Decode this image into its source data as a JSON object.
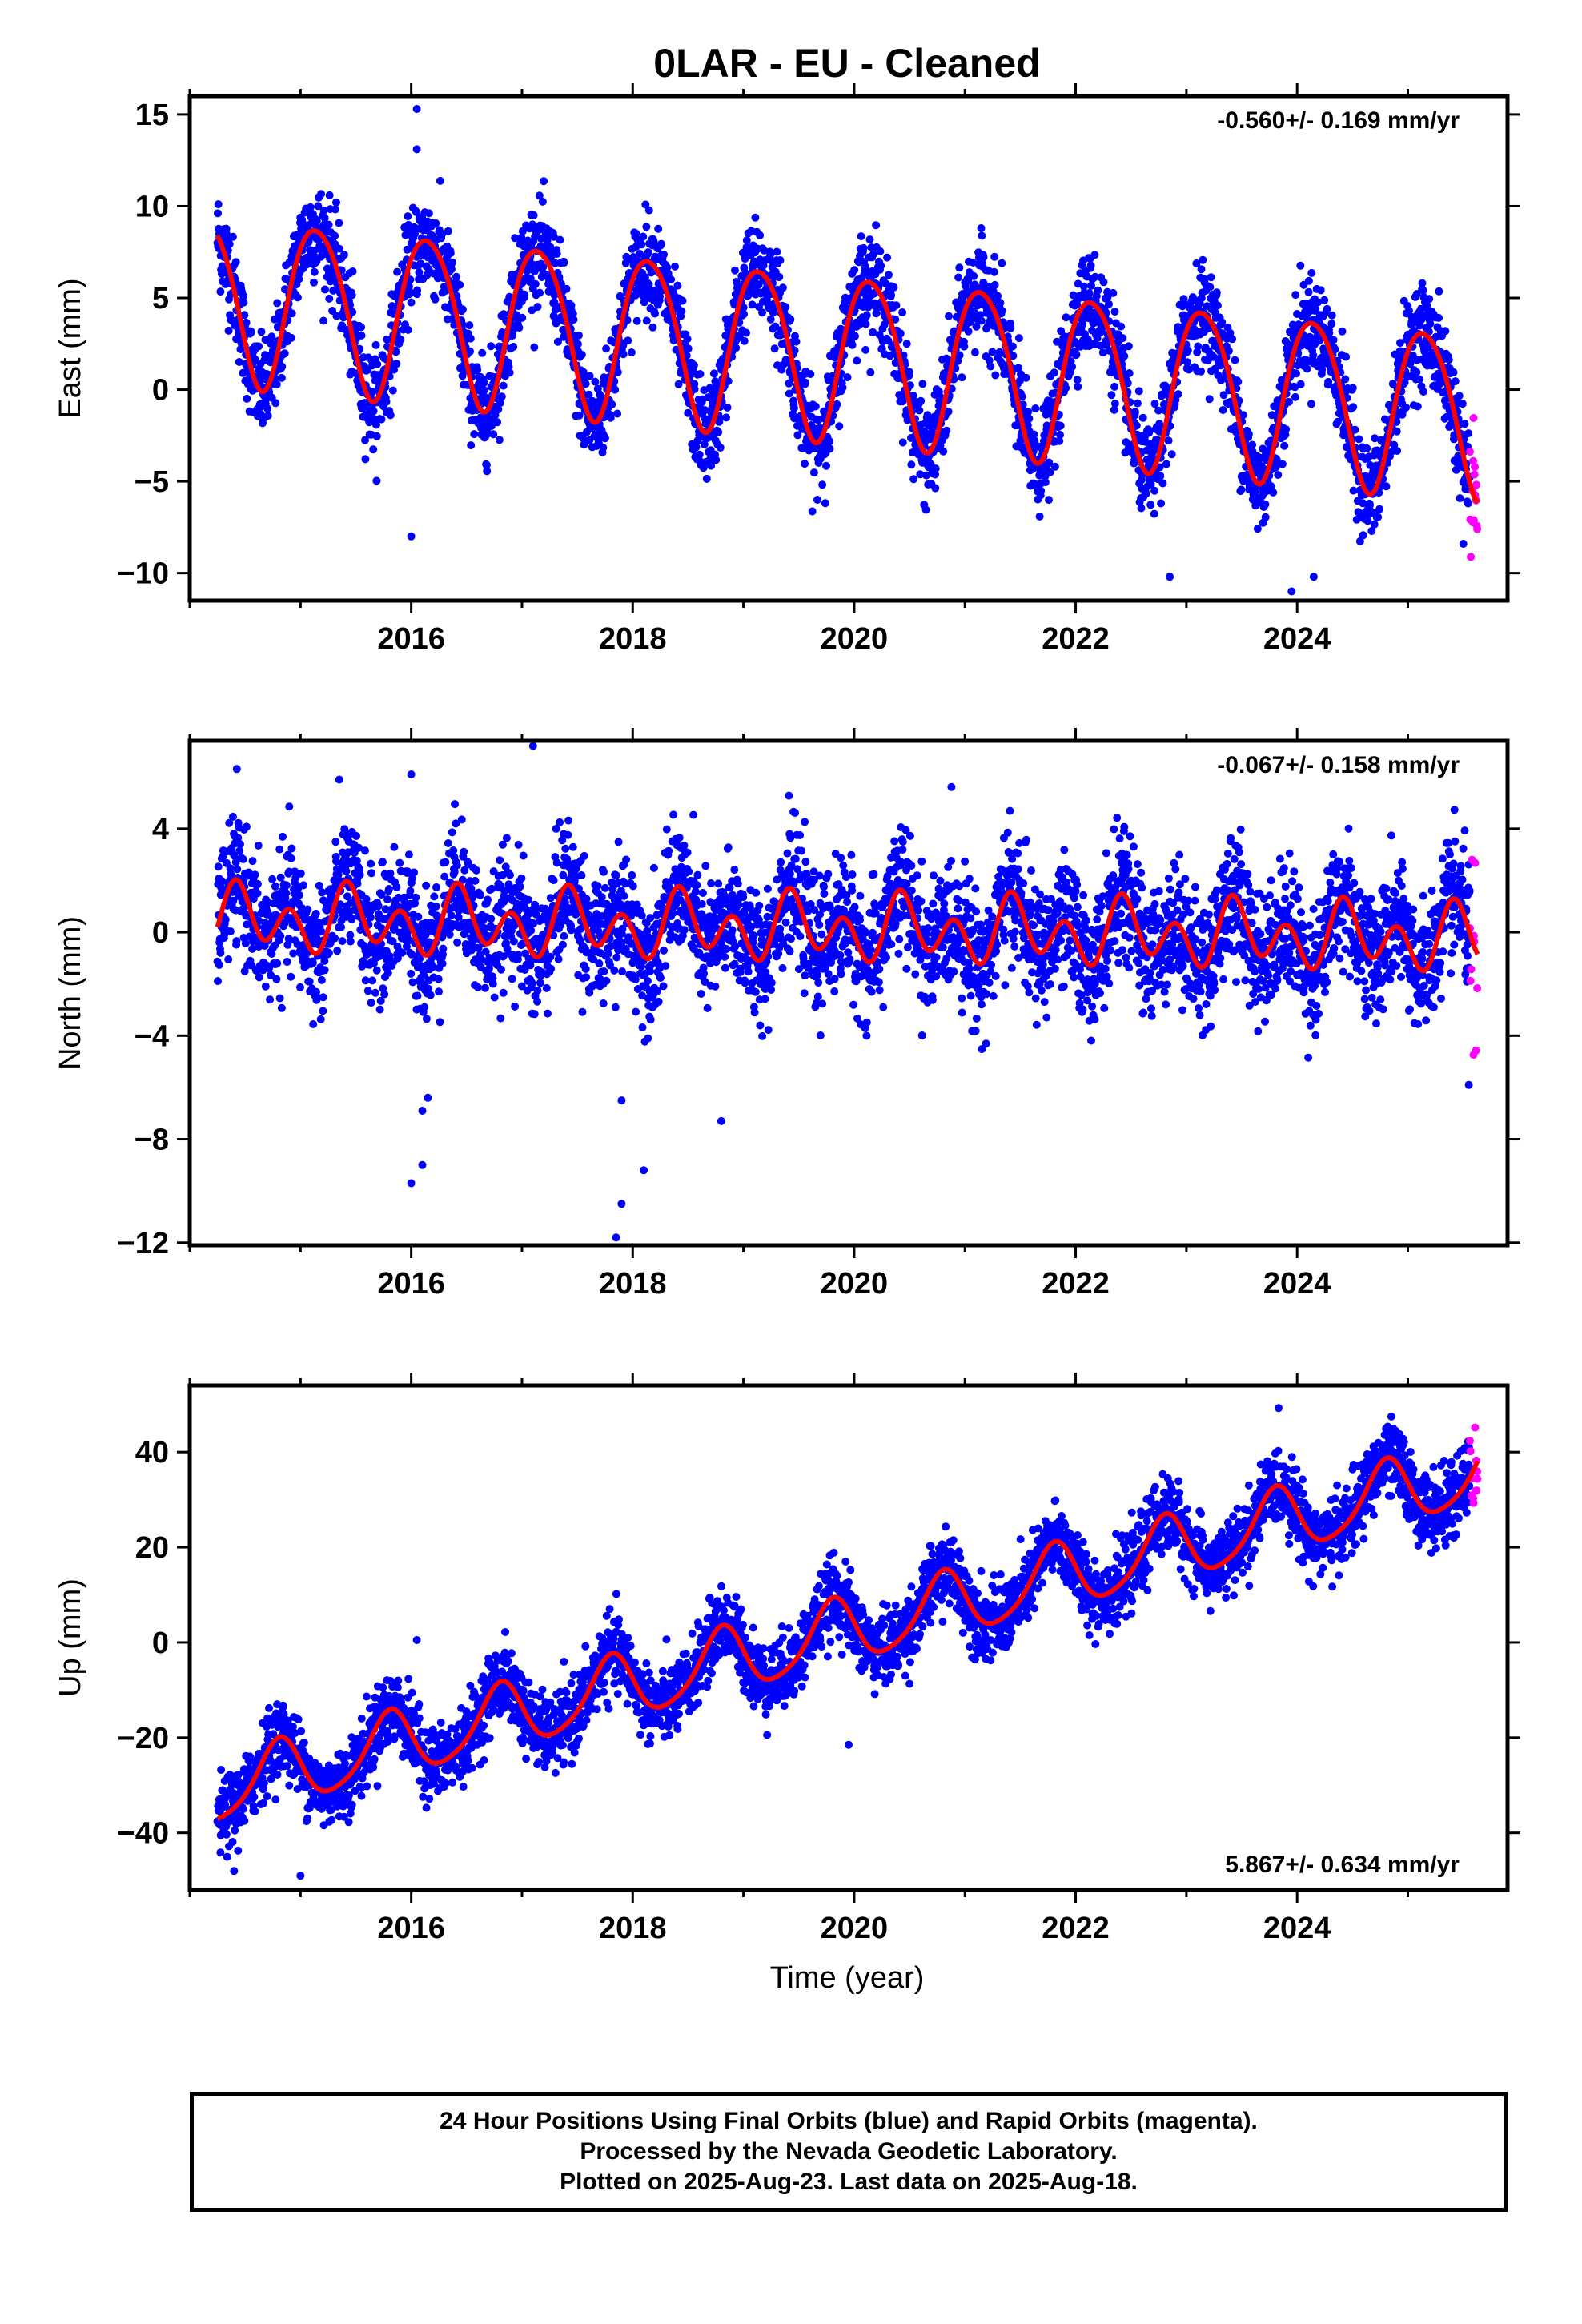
{
  "title": "0LAR  - EU - Cleaned",
  "x_axis_label": "Time (year)",
  "footer": {
    "line1": "24 Hour Positions Using Final Orbits (blue) and Rapid Orbits (magenta).",
    "line2": "Processed by the Nevada Geodetic Laboratory.",
    "line3": "Plotted on 2025-Aug-23. Last data on 2025-Aug-18."
  },
  "colors": {
    "final_orbits": "#0000ff",
    "rapid_orbits": "#ff00ff",
    "model_fit": "#ff0000"
  },
  "chart_data": [
    {
      "type": "scatter",
      "ylabel": "East (mm)",
      "rate_label": "-0.560+/- 0.169 mm/yr",
      "rate_position": "top-right",
      "xlim": [
        2014.0,
        2025.9
      ],
      "ylim": [
        -11.5,
        16
      ],
      "xticks": [
        2016,
        2018,
        2020,
        2022,
        2024
      ],
      "yticks": [
        -10,
        -5,
        0,
        5,
        10,
        15
      ],
      "data_start": 2014.25,
      "data_end": 2025.63,
      "rapid_start": 2025.56,
      "model": {
        "ref_year": 2014.25,
        "offset": 5.1,
        "rate": -0.56,
        "annual_cos": 3.6,
        "annual_sin": -2.7,
        "semiannual_cos": -0.3,
        "semiannual_sin": 0.4
      },
      "scatter_noise": 1.3,
      "outliers": [
        [
          2016.05,
          15.3
        ],
        [
          2016.05,
          13.1
        ],
        [
          2016.0,
          -8.0
        ],
        [
          2022.85,
          -10.2
        ],
        [
          2023.95,
          -11.0
        ],
        [
          2024.15,
          -10.2
        ],
        [
          2025.5,
          -8.4
        ]
      ]
    },
    {
      "type": "scatter",
      "ylabel": "North (mm)",
      "rate_label": "-0.067+/- 0.158 mm/yr",
      "rate_position": "top-right",
      "xlim": [
        2014.0,
        2025.9
      ],
      "ylim": [
        -12.1,
        7.4
      ],
      "xticks": [
        2016,
        2018,
        2020,
        2022,
        2024
      ],
      "yticks": [
        -12,
        -8,
        -4,
        0,
        4
      ],
      "data_start": 2014.25,
      "data_end": 2025.63,
      "rapid_start": 2025.56,
      "model": {
        "ref_year": 2014.25,
        "offset": 0.5,
        "rate": -0.067,
        "annual_cos": 0.1,
        "annual_sin": 0.6,
        "semiannual_cos": -0.4,
        "semiannual_sin": 0.9
      },
      "scatter_noise": 1.2,
      "outliers": [
        [
          2016.0,
          6.1
        ],
        [
          2017.1,
          7.2
        ],
        [
          2016.0,
          -9.7
        ],
        [
          2016.1,
          -9.0
        ],
        [
          2016.1,
          -6.9
        ],
        [
          2016.15,
          -6.4
        ],
        [
          2017.9,
          -6.5
        ],
        [
          2017.9,
          -10.5
        ],
        [
          2017.85,
          -11.8
        ],
        [
          2018.1,
          -9.2
        ],
        [
          2018.8,
          -7.3
        ],
        [
          2025.55,
          -5.9
        ]
      ]
    },
    {
      "type": "scatter",
      "ylabel": "Up (mm)",
      "rate_label": "5.867+/- 0.634 mm/yr",
      "rate_position": "bottom-right",
      "xlim": [
        2014.0,
        2025.9
      ],
      "ylim": [
        -52,
        54
      ],
      "xticks": [
        2016,
        2018,
        2020,
        2022,
        2024
      ],
      "yticks": [
        -40,
        -20,
        0,
        20,
        40
      ],
      "data_start": 2014.25,
      "data_end": 2025.63,
      "rapid_start": 2025.56,
      "model": {
        "ref_year": 2014.25,
        "offset": -31.0,
        "rate": 5.867,
        "annual_cos": -6.5,
        "annual_sin": -2.0,
        "semiannual_cos": 0.5,
        "semiannual_sin": 1.0
      },
      "scatter_noise": 3.8,
      "outliers": [
        [
          2016.05,
          0.5
        ],
        [
          2015.0,
          -49.0
        ],
        [
          2014.4,
          -48.0
        ],
        [
          2019.95,
          -21.5
        ]
      ]
    }
  ]
}
